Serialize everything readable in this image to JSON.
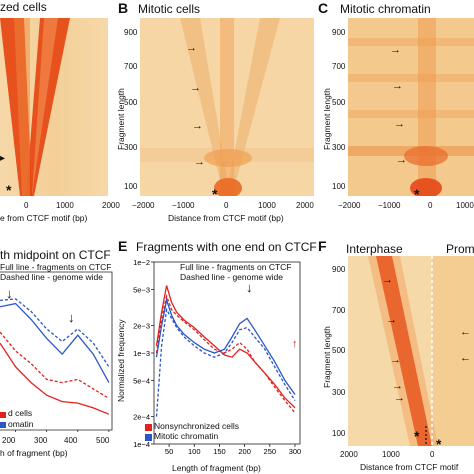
{
  "panels": {
    "a": {
      "letter": "",
      "title": "zed cells",
      "xlabel": "e from CTCF motif (bp)",
      "xticks": [
        "0",
        "1000",
        "2000"
      ]
    },
    "b": {
      "letter": "B",
      "title": "Mitotic cells",
      "xlabel": "Distance from CTCF motif (bp)",
      "ylabel": "Fragment length",
      "xticks": [
        "−2000",
        "−1000",
        "0",
        "1000",
        "2000"
      ],
      "yticks": [
        "900",
        "700",
        "500",
        "300",
        "100"
      ]
    },
    "c": {
      "letter": "C",
      "title": "Mitotic chromatin",
      "ylabel": "Fragment length",
      "xticks": [
        "−2000",
        "−1000",
        "0",
        "1000"
      ],
      "yticks": [
        "900",
        "700",
        "500",
        "300",
        "100"
      ]
    },
    "d": {
      "title": "th midpoint on CTCF",
      "notes": [
        "Full line - fragments on CTCF",
        "Dashed line - genome wide"
      ],
      "legend": [
        "d cells",
        "omatin"
      ],
      "xlabel": "h of fragment (bp)",
      "xticks": [
        "200",
        "300",
        "400",
        "500"
      ]
    },
    "e": {
      "letter": "E",
      "title": "Fragments with one end on CTCF",
      "notes": [
        "Full line - fragments on CTCF",
        "Dashed line - genome wide"
      ],
      "ylabel": "Normalized frequency",
      "xlabel": "Length of fragment (bp)",
      "yticks": [
        "1e−2",
        "5e−3",
        "2e−3",
        "1e−3",
        "5e−4",
        "2e−4",
        "1e−4"
      ],
      "xticks": [
        "50",
        "100",
        "150",
        "200",
        "250",
        "300"
      ],
      "legend": [
        "Nonsynchronized cells",
        "Mitotic chromatin"
      ]
    },
    "f": {
      "letter": "F",
      "title": "Interphase",
      "title2": "Prom",
      "ylabel": "Fragment length",
      "xlabel": "Distance from CTCF motif",
      "xticks": [
        "2000",
        "1000",
        "0"
      ],
      "yticks": [
        "900",
        "700",
        "500",
        "300",
        "100"
      ]
    }
  },
  "colors": {
    "red": "#e4201c",
    "blue": "#2a56c6",
    "heat_bg": "#f5dcae",
    "heat_mid": "#f0a055",
    "heat_hot": "#e23a12"
  },
  "chart_data": [
    {
      "type": "line",
      "panel": "E",
      "title": "Fragments with one end on CTCF",
      "xlabel": "Length of fragment (bp)",
      "ylabel": "Normalized frequency",
      "xlim": [
        20,
        310
      ],
      "ylim": [
        0.0001,
        0.01
      ],
      "yscale": "log",
      "series": [
        {
          "name": "Nonsynchronized cells",
          "style": "full",
          "x": [
            25,
            35,
            45,
            55,
            65,
            80,
            100,
            120,
            140,
            160,
            175,
            190,
            205,
            220,
            240,
            260,
            280,
            300
          ],
          "y": [
            0.0012,
            0.0028,
            0.0055,
            0.0036,
            0.0028,
            0.0023,
            0.0019,
            0.0015,
            0.0012,
            0.00095,
            0.0009,
            0.0011,
            0.001,
            0.0008,
            0.0006,
            0.00045,
            0.00032,
            0.00025
          ]
        },
        {
          "name": "Nonsynchronized cells",
          "style": "dashed",
          "x": [
            25,
            35,
            45,
            55,
            65,
            80,
            100,
            120,
            140,
            160,
            175,
            190,
            205,
            220,
            240,
            260,
            280,
            300
          ],
          "y": [
            0.001,
            0.0024,
            0.0042,
            0.003,
            0.0026,
            0.0022,
            0.0018,
            0.0014,
            0.0011,
            0.001,
            0.0011,
            0.0013,
            0.0011,
            0.0008,
            0.0006,
            0.00042,
            0.0003,
            0.00022
          ]
        },
        {
          "name": "Mitotic chromatin",
          "style": "full",
          "x": [
            25,
            35,
            45,
            55,
            65,
            80,
            100,
            120,
            140,
            160,
            175,
            190,
            205,
            220,
            240,
            260,
            280,
            300
          ],
          "y": [
            0.0009,
            0.002,
            0.0038,
            0.0026,
            0.002,
            0.0016,
            0.0013,
            0.0011,
            0.001,
            0.0011,
            0.0015,
            0.0021,
            0.0024,
            0.0018,
            0.0012,
            0.0008,
            0.0005,
            0.00035
          ]
        },
        {
          "name": "Mitotic chromatin",
          "style": "dashed",
          "x": [
            25,
            35,
            45,
            55,
            65,
            80,
            100,
            120,
            140,
            160,
            175,
            190,
            205,
            220,
            240,
            260,
            280,
            300
          ],
          "y": [
            0.0002,
            0.0012,
            0.003,
            0.0024,
            0.0019,
            0.0015,
            0.0012,
            0.001,
            0.0009,
            0.001,
            0.0013,
            0.0018,
            0.0019,
            0.0015,
            0.0011,
            0.0007,
            0.00045,
            0.0003
          ]
        }
      ]
    },
    {
      "type": "line",
      "panel": "D",
      "xlabel": "h of fragment (bp)",
      "xlim": [
        150,
        510
      ],
      "series": [
        {
          "name": "Nonsynchronized cells",
          "style": "full",
          "x": [
            150,
            200,
            250,
            300,
            350,
            400,
            450,
            500
          ],
          "y": [
            0.55,
            0.4,
            0.3,
            0.22,
            0.18,
            0.17,
            0.14,
            0.1
          ]
        },
        {
          "name": "Nonsynchronized cells",
          "style": "dashed",
          "x": [
            150,
            200,
            250,
            300,
            350,
            400,
            450,
            500
          ],
          "y": [
            0.62,
            0.5,
            0.42,
            0.32,
            0.3,
            0.32,
            0.26,
            0.2
          ]
        },
        {
          "name": "Mitotic chromatin",
          "style": "full",
          "x": [
            150,
            200,
            250,
            300,
            350,
            400,
            450,
            500
          ],
          "y": [
            0.78,
            0.8,
            0.7,
            0.58,
            0.48,
            0.6,
            0.48,
            0.3
          ]
        },
        {
          "name": "Mitotic chromatin",
          "style": "dashed",
          "x": [
            150,
            200,
            250,
            300,
            350,
            400,
            450,
            500
          ],
          "y": [
            0.82,
            0.83,
            0.75,
            0.64,
            0.56,
            0.64,
            0.55,
            0.4
          ]
        }
      ]
    }
  ]
}
